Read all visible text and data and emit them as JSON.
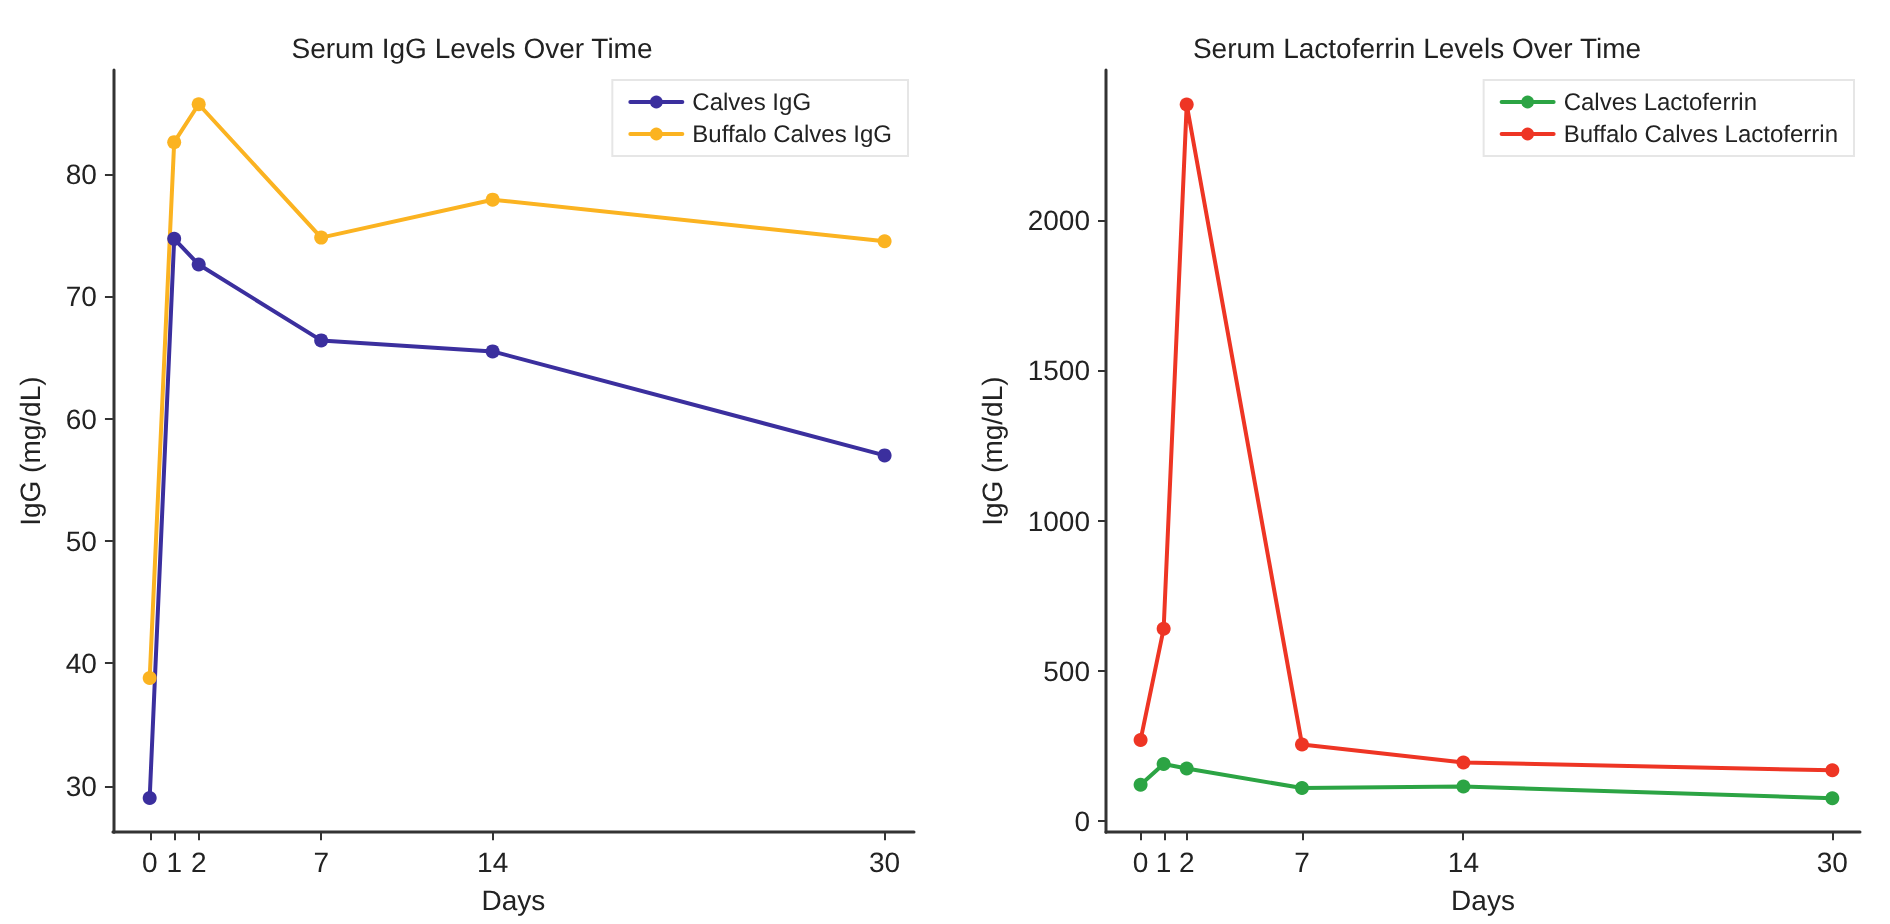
{
  "chart_data": [
    {
      "type": "line",
      "title": "Serum IgG Levels Over Time",
      "xlabel": "Days",
      "ylabel": "IgG (mg/dL)",
      "x": [
        0,
        1,
        2,
        7,
        14,
        30
      ],
      "xlim": [
        -1.5,
        31.2
      ],
      "xticks": [
        0,
        1,
        2,
        7,
        14,
        30
      ],
      "ylim": [
        26.2,
        88.5
      ],
      "yticks": [
        30,
        40,
        50,
        60,
        70,
        80
      ],
      "legend": "top right",
      "grid": false,
      "marker": "circle",
      "line_style": "solid",
      "series": [
        {
          "name": "Calves IgG",
          "color": "#3b2f9e",
          "values": [
            29,
            74.7,
            72.6,
            66.4,
            65.5,
            57.0
          ]
        },
        {
          "name": "Buffalo Calves IgG",
          "color": "#fbb321",
          "values": [
            38.8,
            82.6,
            85.7,
            74.8,
            77.9,
            74.5
          ]
        }
      ]
    },
    {
      "type": "line",
      "title": "Serum Lactoferrin Levels Over Time",
      "xlabel": "Days",
      "ylabel": "IgG (mg/dL)",
      "x": [
        0,
        1,
        2,
        7,
        14,
        30
      ],
      "xlim": [
        -1.5,
        31.2
      ],
      "xticks": [
        0,
        1,
        2,
        7,
        14,
        30
      ],
      "ylim": [
        -37,
        2500
      ],
      "yticks": [
        0,
        500,
        1000,
        1500,
        2000
      ],
      "legend": "top right",
      "grid": false,
      "marker": "circle",
      "line_style": "solid",
      "series": [
        {
          "name": "Calves Lactoferrin",
          "color": "#2ca444",
          "values": [
            121,
            190,
            175,
            110,
            115,
            76
          ]
        },
        {
          "name": "Buffalo Calves Lactoferrin",
          "color": "#ee3524",
          "values": [
            270,
            640,
            2385,
            255,
            195,
            169
          ]
        }
      ]
    }
  ]
}
